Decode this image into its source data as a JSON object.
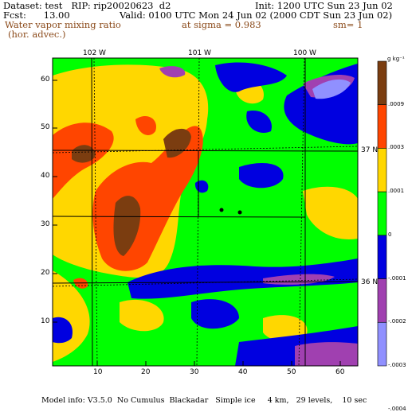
{
  "header": {
    "dataset_line": "Dataset: test   RIP: rip20020623  d2",
    "fcst_line": "Fcst:      13.00",
    "init_line": "Init: 1200 UTC Sun 23 Jun 02",
    "valid_line": "Valid: 0100 UTC Mon 24 Jun 02 (2000 CDT Sun 23 Jun 02)",
    "field_name": "Water vapor mixing ratio",
    "field_sub": "(hor. advec.)",
    "sigma_text": "at sigma = 0.983",
    "sm_text": "sm= 1"
  },
  "axes": {
    "x_ticks": [
      "10",
      "20",
      "30",
      "40",
      "50",
      "60"
    ],
    "y_ticks": [
      "60",
      "50",
      "40",
      "30",
      "20",
      "10"
    ],
    "top_lon_labels": [
      "102 W",
      "101 W",
      "100 W"
    ],
    "right_lat_labels": [
      "37 N",
      "36 N"
    ]
  },
  "colorbar": {
    "unit": "g kg⁻¹",
    "labels": [
      ".0009",
      ".0003",
      ".0001",
      "0",
      "-.0001",
      "-.0002",
      "-.0003",
      "-.0004"
    ],
    "colors": [
      "#7b3d10",
      "#ff4500",
      "#ffd700",
      "#00ff00",
      "#0000e0",
      "#a040b0",
      "#9090ff"
    ]
  },
  "footer": {
    "model_info": "Model info: V3.5.0  No Cumulus  Blackadar   Simple ice     4 km,   29 levels,    10 sec"
  }
}
